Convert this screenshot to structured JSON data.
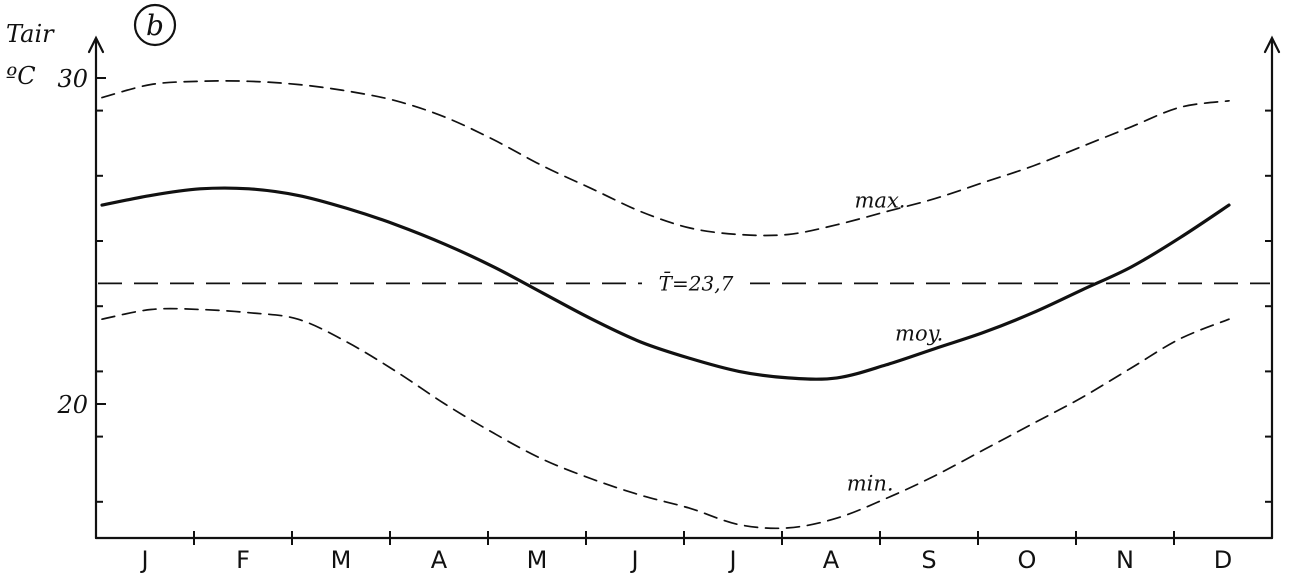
{
  "chart_data": {
    "type": "line",
    "panel_label": "b",
    "ylabel": "Tair",
    "yunit": "ºC",
    "ylim": [
      16,
      30
    ],
    "yticks": [
      {
        "value": 30,
        "label": "30"
      },
      {
        "value": 20,
        "label": "20"
      }
    ],
    "categories": [
      "J",
      "F",
      "M",
      "A",
      "M",
      "J",
      "J",
      "A",
      "S",
      "O",
      "N",
      "D"
    ],
    "x": [
      0.0,
      0.5,
      1.0,
      1.5,
      2.0,
      2.5,
      3.0,
      3.5,
      4.0,
      4.5,
      5.0,
      5.5,
      6.0,
      6.5,
      7.0,
      7.5,
      8.0,
      8.5,
      9.0,
      9.5,
      10.0,
      10.5,
      11.0,
      11.5
    ],
    "series": [
      {
        "name": "max.",
        "style": "dashed",
        "color": "#111111",
        "values": [
          29.4,
          29.8,
          29.9,
          29.9,
          29.8,
          29.6,
          29.3,
          28.8,
          28.1,
          27.3,
          26.6,
          25.9,
          25.4,
          25.2,
          25.2,
          25.5,
          25.9,
          26.3,
          26.8,
          27.3,
          27.9,
          28.5,
          29.1,
          29.3
        ]
      },
      {
        "name": "moy.",
        "style": "solid",
        "color": "#111111",
        "values": [
          26.1,
          26.4,
          26.6,
          26.6,
          26.4,
          26.0,
          25.5,
          24.9,
          24.2,
          23.4,
          22.6,
          21.9,
          21.4,
          21.0,
          20.8,
          20.8,
          21.2,
          21.7,
          22.2,
          22.8,
          23.5,
          24.2,
          25.1,
          26.1
        ]
      },
      {
        "name": "min.",
        "style": "dashed",
        "color": "#111111",
        "values": [
          22.6,
          22.9,
          22.9,
          22.8,
          22.6,
          21.9,
          21.0,
          20.0,
          19.1,
          18.3,
          17.7,
          17.2,
          16.8,
          16.3,
          16.2,
          16.5,
          17.1,
          17.8,
          18.6,
          19.4,
          20.2,
          21.1,
          22.0,
          22.6
        ]
      }
    ],
    "mean_line": {
      "label": "T̄=23,7",
      "value": 23.7,
      "style": "dashed"
    },
    "legend": "inline labels on curves",
    "grid": false
  }
}
